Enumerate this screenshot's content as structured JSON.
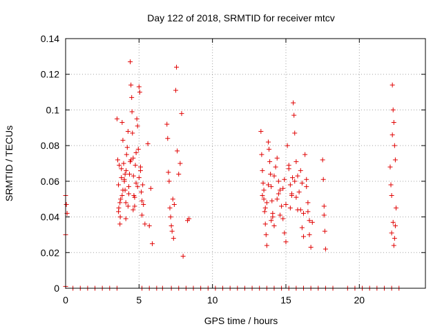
{
  "chart_data": {
    "type": "scatter",
    "title": "Day 122 of 2018, SRMTID for receiver mtcv",
    "xlabel": "GPS time / hours",
    "ylabel": "SRMTID / TECUs",
    "xlim": [
      0,
      24.5
    ],
    "ylim": [
      0,
      0.14
    ],
    "x_ticks": [
      0,
      5,
      10,
      15,
      20
    ],
    "x_tick_labels": [
      "0",
      "5",
      "10",
      "15",
      "20"
    ],
    "y_ticks": [
      0,
      0.02,
      0.04,
      0.06,
      0.08,
      0.1,
      0.12,
      0.14
    ],
    "y_tick_labels": [
      "0",
      "0.02",
      "0.04",
      "0.06",
      "0.08",
      "0.1",
      "0.12",
      "0.14"
    ],
    "grid": true,
    "marker": "+",
    "series": [
      {
        "name": "SRMTID",
        "color": "#e00000",
        "x": [
          0.0,
          0.05,
          0.1,
          0.0,
          0.0,
          3.5,
          3.55,
          3.6,
          3.62,
          3.7,
          3.72,
          3.75,
          3.8,
          3.85,
          3.9,
          3.95,
          4.0,
          4.05,
          4.1,
          4.12,
          4.15,
          4.2,
          4.25,
          4.3,
          4.35,
          4.4,
          4.45,
          4.5,
          4.52,
          4.55,
          4.6,
          4.62,
          4.65,
          4.7,
          4.75,
          4.8,
          4.85,
          4.9,
          4.95,
          5.0,
          5.05,
          5.1,
          5.15,
          5.2,
          5.25,
          5.3,
          5.4,
          5.6,
          5.7,
          5.8,
          5.9,
          3.6,
          3.7,
          3.8,
          3.9,
          4.0,
          4.1,
          4.3,
          4.4,
          4.6,
          4.8,
          5.0,
          5.2,
          3.65,
          3.85,
          4.05,
          4.25,
          4.45,
          4.7,
          4.9,
          5.1,
          6.9,
          6.95,
          7.0,
          7.05,
          7.1,
          7.15,
          7.2,
          7.3,
          7.4,
          7.5,
          7.55,
          7.6,
          7.7,
          7.8,
          7.9,
          8.0,
          8.3,
          8.4,
          7.25,
          7.35,
          13.3,
          13.35,
          13.4,
          13.45,
          13.5,
          13.55,
          13.6,
          13.65,
          13.7,
          13.8,
          13.85,
          13.9,
          13.95,
          14.0,
          14.05,
          14.1,
          14.2,
          14.3,
          14.4,
          14.5,
          14.6,
          14.7,
          14.8,
          14.9,
          15.0,
          15.1,
          15.2,
          15.3,
          15.4,
          15.45,
          15.5,
          15.55,
          15.6,
          15.7,
          15.8,
          15.9,
          16.0,
          16.1,
          16.2,
          16.3,
          16.4,
          16.5,
          16.6,
          16.7,
          16.8,
          13.4,
          13.6,
          13.8,
          14.0,
          14.2,
          14.4,
          14.6,
          14.8,
          15.0,
          15.2,
          15.4,
          15.6,
          15.8,
          16.0,
          16.2,
          16.4,
          16.6,
          13.5,
          13.7,
          14.1,
          14.5,
          14.9,
          15.3,
          15.7,
          16.1,
          16.5,
          17.5,
          17.55,
          17.6,
          17.65,
          17.7,
          17.6,
          22.1,
          22.15,
          22.2,
          22.25,
          22.3,
          22.35,
          22.4,
          22.45,
          22.5,
          22.3,
          22.2,
          22.4,
          22.35,
          22.25,
          22.45,
          0.5,
          1.0,
          1.5,
          2.0,
          2.5,
          3.0,
          3.5,
          5.2,
          5.7,
          6.2,
          6.6,
          7.2,
          7.7,
          8.2,
          8.7,
          9.2,
          9.7,
          10.2,
          10.7,
          11.2,
          11.7,
          12.2,
          12.7,
          13.2,
          13.7,
          14.2,
          14.7,
          15.2,
          15.7,
          16.2,
          16.7,
          17.2,
          17.7,
          18.2,
          19.2,
          19.7,
          20.2,
          20.7,
          21.2,
          21.7,
          22.2,
          22.7
        ],
        "y": [
          0.052,
          0.047,
          0.042,
          0.03,
          0.001,
          0.095,
          0.072,
          0.058,
          0.045,
          0.036,
          0.04,
          0.05,
          0.062,
          0.093,
          0.083,
          0.07,
          0.06,
          0.055,
          0.048,
          0.066,
          0.075,
          0.079,
          0.088,
          0.057,
          0.064,
          0.127,
          0.114,
          0.107,
          0.099,
          0.087,
          0.073,
          0.063,
          0.052,
          0.046,
          0.069,
          0.076,
          0.095,
          0.091,
          0.078,
          0.113,
          0.11,
          0.066,
          0.054,
          0.041,
          0.058,
          0.047,
          0.036,
          0.081,
          0.035,
          0.056,
          0.025,
          0.043,
          0.048,
          0.067,
          0.055,
          0.061,
          0.039,
          0.053,
          0.071,
          0.044,
          0.059,
          0.062,
          0.049,
          0.069,
          0.052,
          0.064,
          0.046,
          0.072,
          0.051,
          0.057,
          0.068,
          0.092,
          0.084,
          0.065,
          0.06,
          0.045,
          0.04,
          0.035,
          0.05,
          0.047,
          0.111,
          0.124,
          0.077,
          0.064,
          0.07,
          0.098,
          0.018,
          0.038,
          0.039,
          0.032,
          0.028,
          0.088,
          0.075,
          0.066,
          0.059,
          0.05,
          0.043,
          0.036,
          0.03,
          0.024,
          0.082,
          0.078,
          0.071,
          0.064,
          0.057,
          0.049,
          0.042,
          0.035,
          0.068,
          0.073,
          0.06,
          0.055,
          0.046,
          0.039,
          0.031,
          0.026,
          0.08,
          0.067,
          0.058,
          0.052,
          0.062,
          0.104,
          0.097,
          0.087,
          0.071,
          0.063,
          0.054,
          0.044,
          0.034,
          0.029,
          0.075,
          0.061,
          0.048,
          0.038,
          0.023,
          0.037,
          0.052,
          0.045,
          0.058,
          0.038,
          0.063,
          0.05,
          0.041,
          0.056,
          0.047,
          0.069,
          0.053,
          0.06,
          0.044,
          0.066,
          0.042,
          0.057,
          0.03,
          0.055,
          0.048,
          0.04,
          0.053,
          0.061,
          0.045,
          0.051,
          0.059,
          0.043,
          0.072,
          0.061,
          0.046,
          0.032,
          0.022,
          0.041,
          0.068,
          0.058,
          0.052,
          0.114,
          0.1,
          0.093,
          0.08,
          0.072,
          0.045,
          0.037,
          0.031,
          0.028,
          0.024,
          0.086,
          0.035,
          0.0,
          0.0,
          0.0,
          0.0,
          0.0,
          0.0,
          0.0,
          0.0,
          0.0,
          0.0,
          0.0,
          0.0,
          0.0,
          0.0,
          0.0,
          0.0,
          0.0,
          0.0,
          0.0,
          0.0,
          0.0,
          0.0,
          0.0,
          0.0,
          0.0,
          0.0,
          0.0,
          0.0,
          0.0,
          0.0,
          0.0,
          0.0,
          0.0,
          0.0,
          0.0,
          0.0,
          0.0,
          0.0,
          0.0,
          0.0,
          0.0,
          0.0
        ]
      }
    ]
  }
}
